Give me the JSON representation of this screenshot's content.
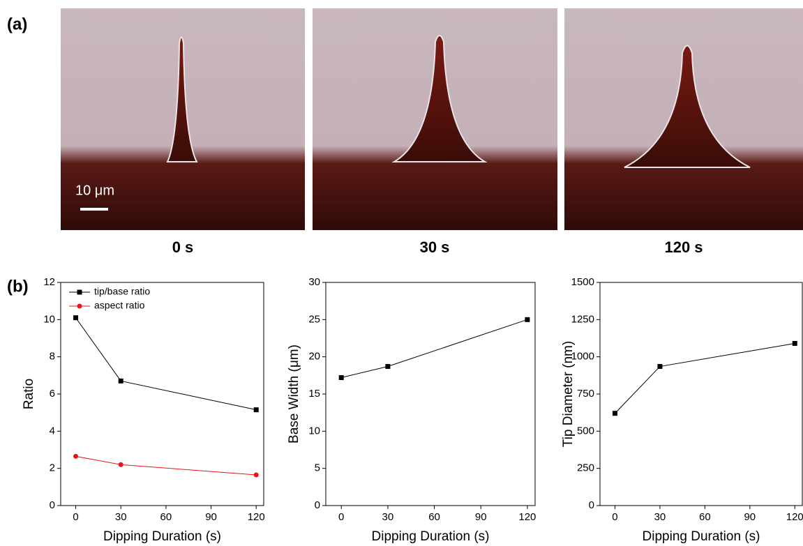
{
  "panel_a": {
    "label": "(a)",
    "scale_bar": "10 μm",
    "captions": [
      "0 s",
      "30 s",
      "120 s"
    ]
  },
  "panel_b_label": "(b)",
  "chart_data": [
    {
      "type": "line",
      "x": [
        0,
        30,
        120
      ],
      "xlim": [
        -10,
        125
      ],
      "xticks": [
        0,
        30,
        60,
        90,
        120
      ],
      "ylim": [
        0,
        12
      ],
      "yticks": [
        0,
        2,
        4,
        6,
        8,
        10,
        12
      ],
      "xlabel": "Dipping Duration (s)",
      "ylabel": "Ratio",
      "legend": "upper left",
      "series": [
        {
          "name": "tip/base ratio",
          "color": "#000000",
          "marker": "square",
          "values": [
            10.1,
            6.7,
            5.15
          ]
        },
        {
          "name": "aspect ratio",
          "color": "#e8141a",
          "marker": "circle",
          "values": [
            2.65,
            2.2,
            1.65
          ]
        }
      ]
    },
    {
      "type": "line",
      "x": [
        0,
        30,
        120
      ],
      "xlim": [
        -10,
        125
      ],
      "xticks": [
        0,
        30,
        60,
        90,
        120
      ],
      "ylim": [
        0,
        30
      ],
      "yticks": [
        0,
        5,
        10,
        15,
        20,
        25,
        30
      ],
      "xlabel": "Dipping Duration (s)",
      "ylabel": "Base Width (μm)",
      "series": [
        {
          "color": "#000000",
          "marker": "square",
          "values": [
            17.2,
            18.7,
            25
          ]
        }
      ]
    },
    {
      "type": "line",
      "x": [
        0,
        30,
        120
      ],
      "xlim": [
        -10,
        125
      ],
      "xticks": [
        0,
        30,
        60,
        90,
        120
      ],
      "ylim": [
        0,
        1500
      ],
      "yticks": [
        0,
        250,
        500,
        750,
        1000,
        1250,
        1500
      ],
      "xlabel": "Dipping Duration (s)",
      "ylabel": "Tip Diameter (nm)",
      "series": [
        {
          "color": "#000000",
          "marker": "square",
          "values": [
            620,
            935,
            1090
          ]
        }
      ]
    }
  ]
}
